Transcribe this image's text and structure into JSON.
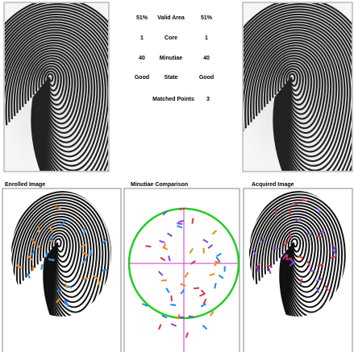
{
  "stats": {
    "rows": [
      [
        "51%",
        "Valid Area",
        "51%"
      ],
      [
        "1",
        "Core",
        "1"
      ],
      [
        "40",
        "Minutiae",
        "40"
      ],
      [
        "Good",
        "State",
        "Good"
      ]
    ],
    "matched_label": "Matched Points",
    "matched_value": "3"
  },
  "panels": {
    "enrolled": "Enrolled Image",
    "comparison": "Minutiae Comparison",
    "acquired": "Acquired Image"
  }
}
